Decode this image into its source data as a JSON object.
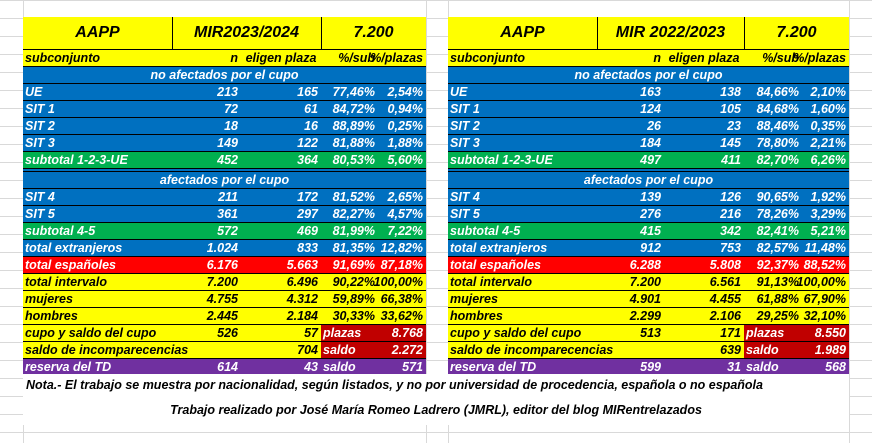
{
  "left": {
    "title": [
      "AAPP",
      "MIR2023/2024",
      "7.200"
    ],
    "header": [
      "subconjunto",
      "n",
      "eligen plaza",
      "%/sub",
      "%/plazas"
    ],
    "section1": "no afectados por el cupo",
    "rows1": [
      [
        "UE",
        "213",
        "165",
        "77,46%",
        "2,54%"
      ],
      [
        "SIT 1",
        "72",
        "61",
        "84,72%",
        "0,94%"
      ],
      [
        "SIT 2",
        "18",
        "16",
        "88,89%",
        "0,25%"
      ],
      [
        "SIT 3",
        "149",
        "122",
        "81,88%",
        "1,88%"
      ]
    ],
    "subtotal123": [
      "subtotal 1-2-3-UE",
      "452",
      "364",
      "80,53%",
      "5,60%"
    ],
    "section2": "afectados por el cupo",
    "rows2": [
      [
        "SIT 4",
        "211",
        "172",
        "81,52%",
        "2,65%"
      ],
      [
        "SIT 5",
        "361",
        "297",
        "82,27%",
        "4,57%"
      ]
    ],
    "subtotal45": [
      "subtotal 4-5",
      "572",
      "469",
      "81,99%",
      "7,22%"
    ],
    "extranjeros": [
      "total extranjeros",
      "1.024",
      "833",
      "81,35%",
      "12,82%"
    ],
    "espanoles": [
      "total españoles",
      "6.176",
      "5.663",
      "91,69%",
      "87,18%"
    ],
    "intervalo": [
      "total intervalo",
      "7.200",
      "6.496",
      "90,22%",
      "100,00%"
    ],
    "mujeres": [
      "mujeres",
      "4.755",
      "4.312",
      "59,89%",
      "66,38%"
    ],
    "hombres": [
      "hombres",
      "2.445",
      "2.184",
      "30,33%",
      "33,62%"
    ],
    "cupo": [
      "cupo y saldo del cupo",
      "526",
      "57",
      "plazas",
      "8.768"
    ],
    "incomp": [
      "saldo de incomparecencias",
      "704",
      "saldo",
      "2.272"
    ],
    "reserva": [
      "reserva del TD",
      "614",
      "43",
      "saldo",
      "571"
    ]
  },
  "right": {
    "title": [
      "AAPP",
      "MIR 2022/2023",
      "7.200"
    ],
    "header": [
      "subconjunto",
      "n",
      "eligen plaza",
      "%/sub",
      "%/plazas"
    ],
    "section1": "no afectados por el cupo",
    "rows1": [
      [
        "UE",
        "163",
        "138",
        "84,66%",
        "2,10%"
      ],
      [
        "SIT 1",
        "124",
        "105",
        "84,68%",
        "1,60%"
      ],
      [
        "SIT 2",
        "26",
        "23",
        "88,46%",
        "0,35%"
      ],
      [
        "SIT 3",
        "184",
        "145",
        "78,80%",
        "2,21%"
      ]
    ],
    "subtotal123": [
      "subtotal 1-2-3-UE",
      "497",
      "411",
      "82,70%",
      "6,26%"
    ],
    "section2": "afectados por el cupo",
    "rows2": [
      [
        "SIT 4",
        "139",
        "126",
        "90,65%",
        "1,92%"
      ],
      [
        "SIT 5",
        "276",
        "216",
        "78,26%",
        "3,29%"
      ]
    ],
    "subtotal45": [
      "subtotal 4-5",
      "415",
      "342",
      "82,41%",
      "5,21%"
    ],
    "extranjeros": [
      "total extranjeros",
      "912",
      "753",
      "82,57%",
      "11,48%"
    ],
    "espanoles": [
      "total españoles",
      "6.288",
      "5.808",
      "92,37%",
      "88,52%"
    ],
    "intervalo": [
      "total intervalo",
      "7.200",
      "6.561",
      "91,13%",
      "100,00%"
    ],
    "mujeres": [
      "mujeres",
      "4.901",
      "4.455",
      "61,88%",
      "67,90%"
    ],
    "hombres": [
      "hombres",
      "2.299",
      "2.106",
      "29,25%",
      "32,10%"
    ],
    "cupo": [
      "cupo y saldo del cupo",
      "513",
      "171",
      "plazas",
      "8.550"
    ],
    "incomp": [
      "saldo de incomparecencias",
      "639",
      "saldo",
      "1.989"
    ],
    "reserva": [
      "reserva del TD",
      "599",
      "31",
      "saldo",
      "568"
    ]
  },
  "note": "Nota.- El trabajo se muestra por nacionalidad, según listados, y no por universidad de procedencia, española o no española",
  "credit": "Trabajo realizado por José María Romeo Ladrero (JMRL), editor del blog MIRentrelazados",
  "colors": {
    "yellow": "#ffff00",
    "blue": "#0070c0",
    "green": "#00b050",
    "red": "#ff0000",
    "purple": "#7030a0",
    "dark_red": "#c00000"
  }
}
